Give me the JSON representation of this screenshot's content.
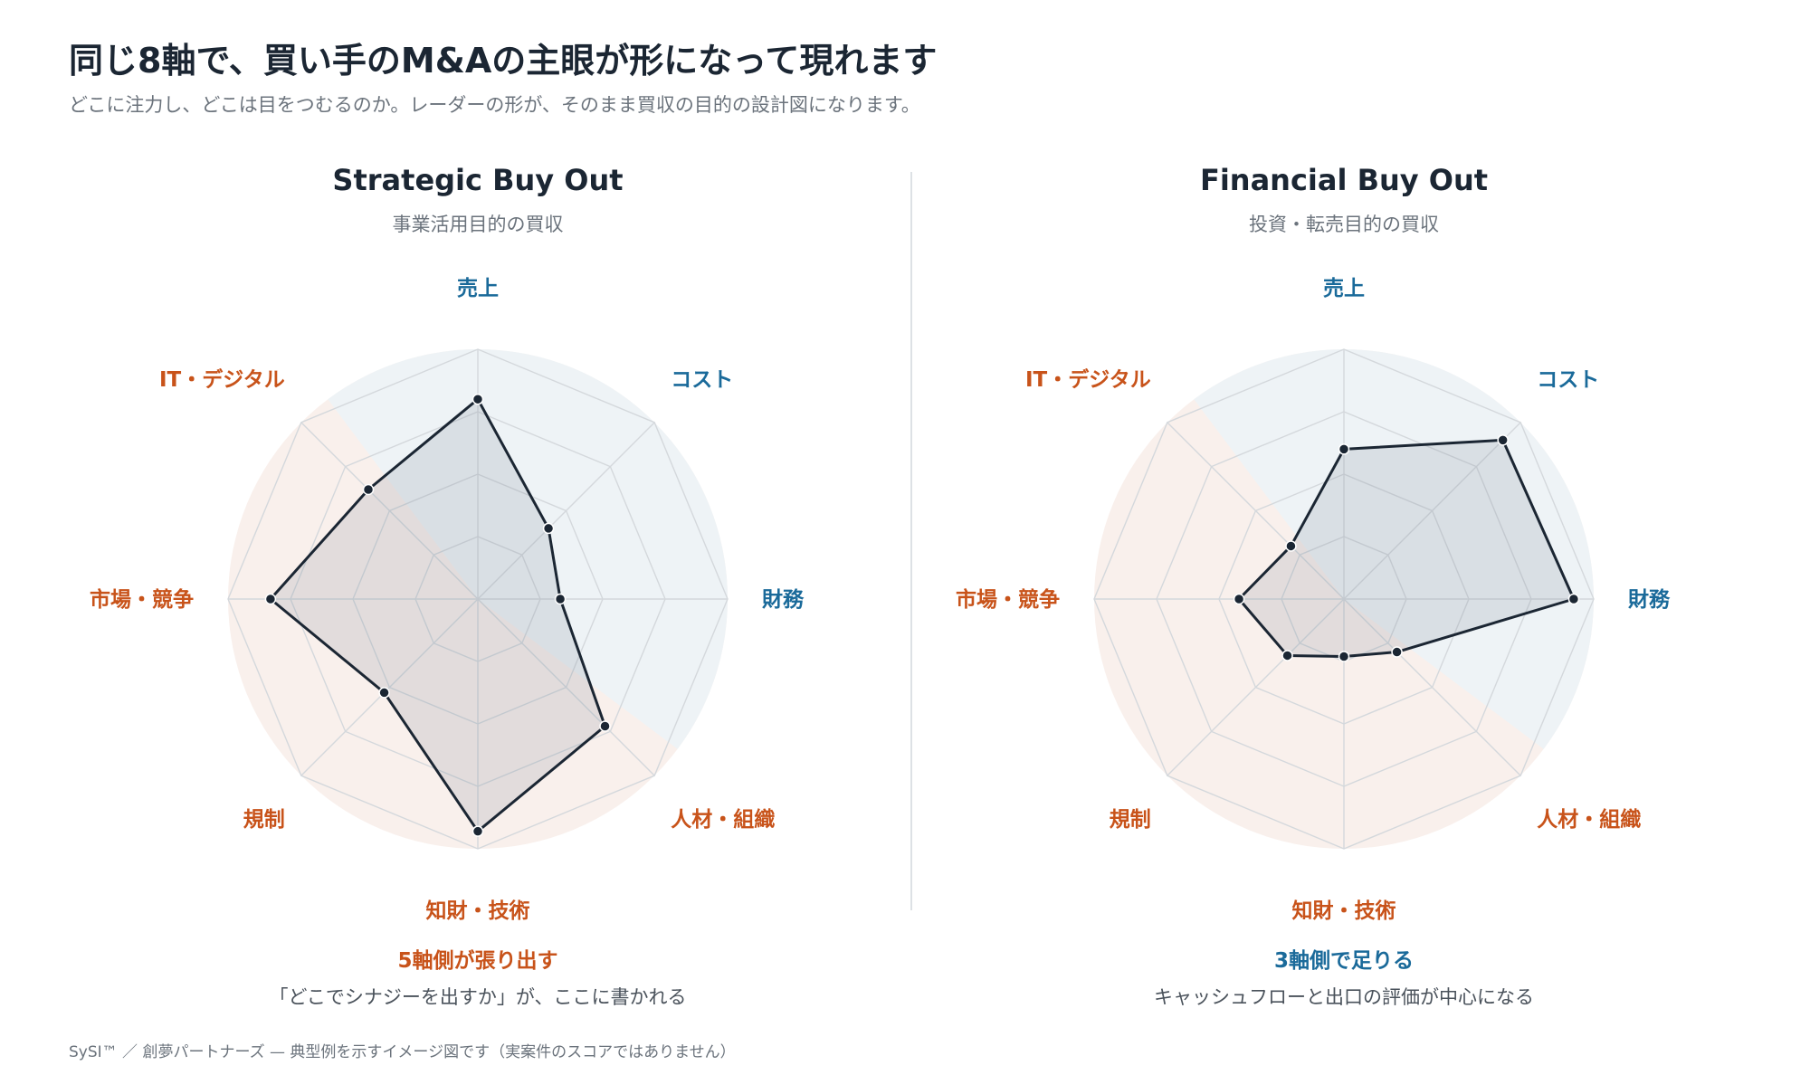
{
  "header": {
    "title": "同じ8軸で、買い手のM&Aの主眼が形になって現れます",
    "subtitle": "どこに注力し、どこは目をつむるのか。レーダーの形が、そのまま買収の目的の設計図になります。"
  },
  "colors": {
    "blue_axis": "#1a6a9a",
    "orange_axis": "#c8531a",
    "blue_sector": "#eef3f6",
    "orange_sector": "#f9f0ec",
    "polygon_stroke": "#1b2633",
    "polygon_fill": "#7a8794",
    "grid": "#d4d8dc"
  },
  "chart_data": [
    {
      "type": "radar",
      "title": "Strategic Buy Out",
      "subtitle": "事業活用目的の買収",
      "axes": [
        "売上",
        "コスト",
        "財務",
        "人材・組織",
        "知財・技術",
        "規制",
        "市場・競争",
        "IT・デジタル"
      ],
      "axis_groups": [
        "blue",
        "blue",
        "blue",
        "orange",
        "orange",
        "orange",
        "orange",
        "orange"
      ],
      "values": [
        0.8,
        0.4,
        0.33,
        0.72,
        0.93,
        0.53,
        0.83,
        0.62
      ],
      "rmax": 1,
      "grid_levels": 4,
      "highlight_sector": {
        "from_axis": 7,
        "to_axis": 2,
        "color": "blue_sector"
      },
      "caption_head": "5軸側が張り出す",
      "caption_head_color": "orange",
      "caption_body": "「どこでシナジーを出すか」が、ここに書かれる"
    },
    {
      "type": "radar",
      "title": "Financial Buy Out",
      "subtitle": "投資・転売目的の買収",
      "axes": [
        "売上",
        "コスト",
        "財務",
        "人材・組織",
        "知財・技術",
        "規制",
        "市場・競争",
        "IT・デジタル"
      ],
      "axis_groups": [
        "blue",
        "blue",
        "blue",
        "orange",
        "orange",
        "orange",
        "orange",
        "orange"
      ],
      "values": [
        0.6,
        0.9,
        0.92,
        0.3,
        0.23,
        0.32,
        0.42,
        0.3
      ],
      "rmax": 1,
      "grid_levels": 4,
      "highlight_sector": {
        "from_axis": 7,
        "to_axis": 2,
        "color": "blue_sector"
      },
      "caption_head": "3軸側で足りる",
      "caption_head_color": "blue",
      "caption_body": "キャッシュフローと出口の評価が中心になる"
    }
  ],
  "footer": "SySI™ ／ 創夢パートナーズ — 典型例を示すイメージ図です（実案件のスコアではありません）"
}
